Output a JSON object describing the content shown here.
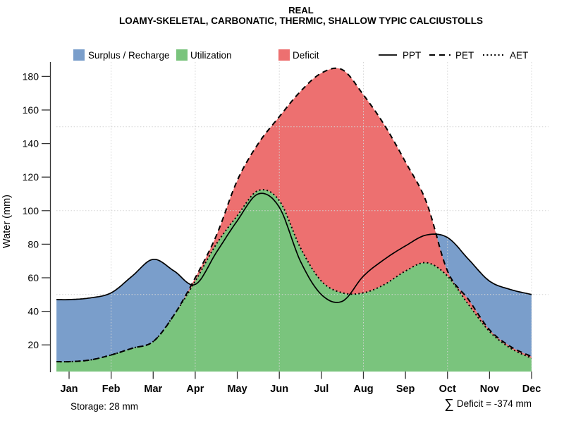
{
  "title": "REAL",
  "subtitle": "LOAMY-SKELETAL, CARBONATIC, THERMIC, SHALLOW TYPIC CALCIUSTOLLS",
  "legend": {
    "areas": [
      {
        "label": "Surplus / Recharge",
        "color": "#7a9ecb"
      },
      {
        "label": "Utilization",
        "color": "#7ac47d"
      },
      {
        "label": "Deficit",
        "color": "#ed7070"
      }
    ],
    "lines": [
      {
        "label": "PPT",
        "style": "solid"
      },
      {
        "label": "PET",
        "style": "dashed"
      },
      {
        "label": "AET",
        "style": "dotted"
      }
    ]
  },
  "axes": {
    "y_label": "Water (mm)",
    "y_ticks": [
      20,
      40,
      60,
      80,
      100,
      120,
      140,
      160,
      180
    ],
    "x_tick_labels": [
      "Jan",
      "Feb",
      "Mar",
      "Apr",
      "May",
      "Jun",
      "Jul",
      "Aug",
      "Sep",
      "Oct",
      "Nov",
      "Dec"
    ]
  },
  "footer": {
    "storage": "Storage: 28 mm",
    "sum_symbol": "∑",
    "deficit": "Deficit = -374 mm"
  },
  "chart_data": {
    "type": "area",
    "title": "REAL",
    "subtitle": "LOAMY-SKELETAL, CARBONATIC, THERMIC, SHALLOW TYPIC CALCIUSTOLLS",
    "ylabel": "Water (mm)",
    "ylim": [
      0,
      190
    ],
    "grid_y": [
      50,
      100,
      150
    ],
    "grid_x_months": [
      "Feb",
      "Apr",
      "Jun",
      "Aug",
      "Oct",
      "Dec"
    ],
    "x_months": [
      "Jan",
      "Feb",
      "Mar",
      "Apr",
      "May",
      "Jun",
      "Jul",
      "Aug",
      "Sep",
      "Oct",
      "Nov",
      "Dec"
    ],
    "x": [
      0,
      0.5,
      1,
      1.5,
      2,
      2.5,
      3,
      3.5,
      4,
      4.5,
      5,
      5.5,
      6,
      6.5,
      7,
      7.5,
      8,
      8.5,
      9,
      9.5,
      10,
      10.5,
      11
    ],
    "series": [
      {
        "name": "PPT",
        "style": "solid",
        "values": [
          47,
          48,
          51,
          61,
          71,
          64,
          56,
          75,
          94,
          110,
          102,
          70,
          50,
          46,
          61,
          71,
          79,
          85.5,
          84,
          71,
          58,
          53,
          50
        ]
      },
      {
        "name": "PET",
        "style": "dashed",
        "values": [
          10,
          11,
          14,
          18,
          22,
          38,
          60,
          85,
          118,
          140,
          156,
          171,
          182,
          184,
          169,
          151,
          129,
          105,
          64,
          47,
          29,
          19,
          13
        ]
      },
      {
        "name": "AET",
        "style": "dotted",
        "values": [
          10,
          11,
          14,
          18,
          22,
          38,
          58,
          80,
          97,
          112,
          106,
          78,
          58,
          51,
          51,
          56,
          64,
          69,
          61,
          44,
          28,
          18,
          12
        ]
      }
    ],
    "monthly_values": {
      "PPT": [
        47,
        51,
        71,
        56,
        94,
        102,
        50,
        61,
        79,
        84,
        58,
        50
      ],
      "PET": [
        10,
        14,
        22,
        60,
        118,
        156,
        182,
        169,
        129,
        64,
        29,
        13
      ],
      "AET": [
        10,
        14,
        22,
        58,
        97,
        106,
        58,
        51,
        64,
        61,
        28,
        12
      ]
    },
    "regions": [
      {
        "name": "Surplus / Recharge",
        "color": "#7a9ecb",
        "rule": "between PET and PPT where PPT > PET"
      },
      {
        "name": "Utilization",
        "color": "#7ac47d",
        "rule": "area under AET"
      },
      {
        "name": "Deficit",
        "color": "#ed7070",
        "rule": "between AET and PET where PET > AET"
      }
    ],
    "storage_mm": 28,
    "deficit_sum_mm": -374
  }
}
